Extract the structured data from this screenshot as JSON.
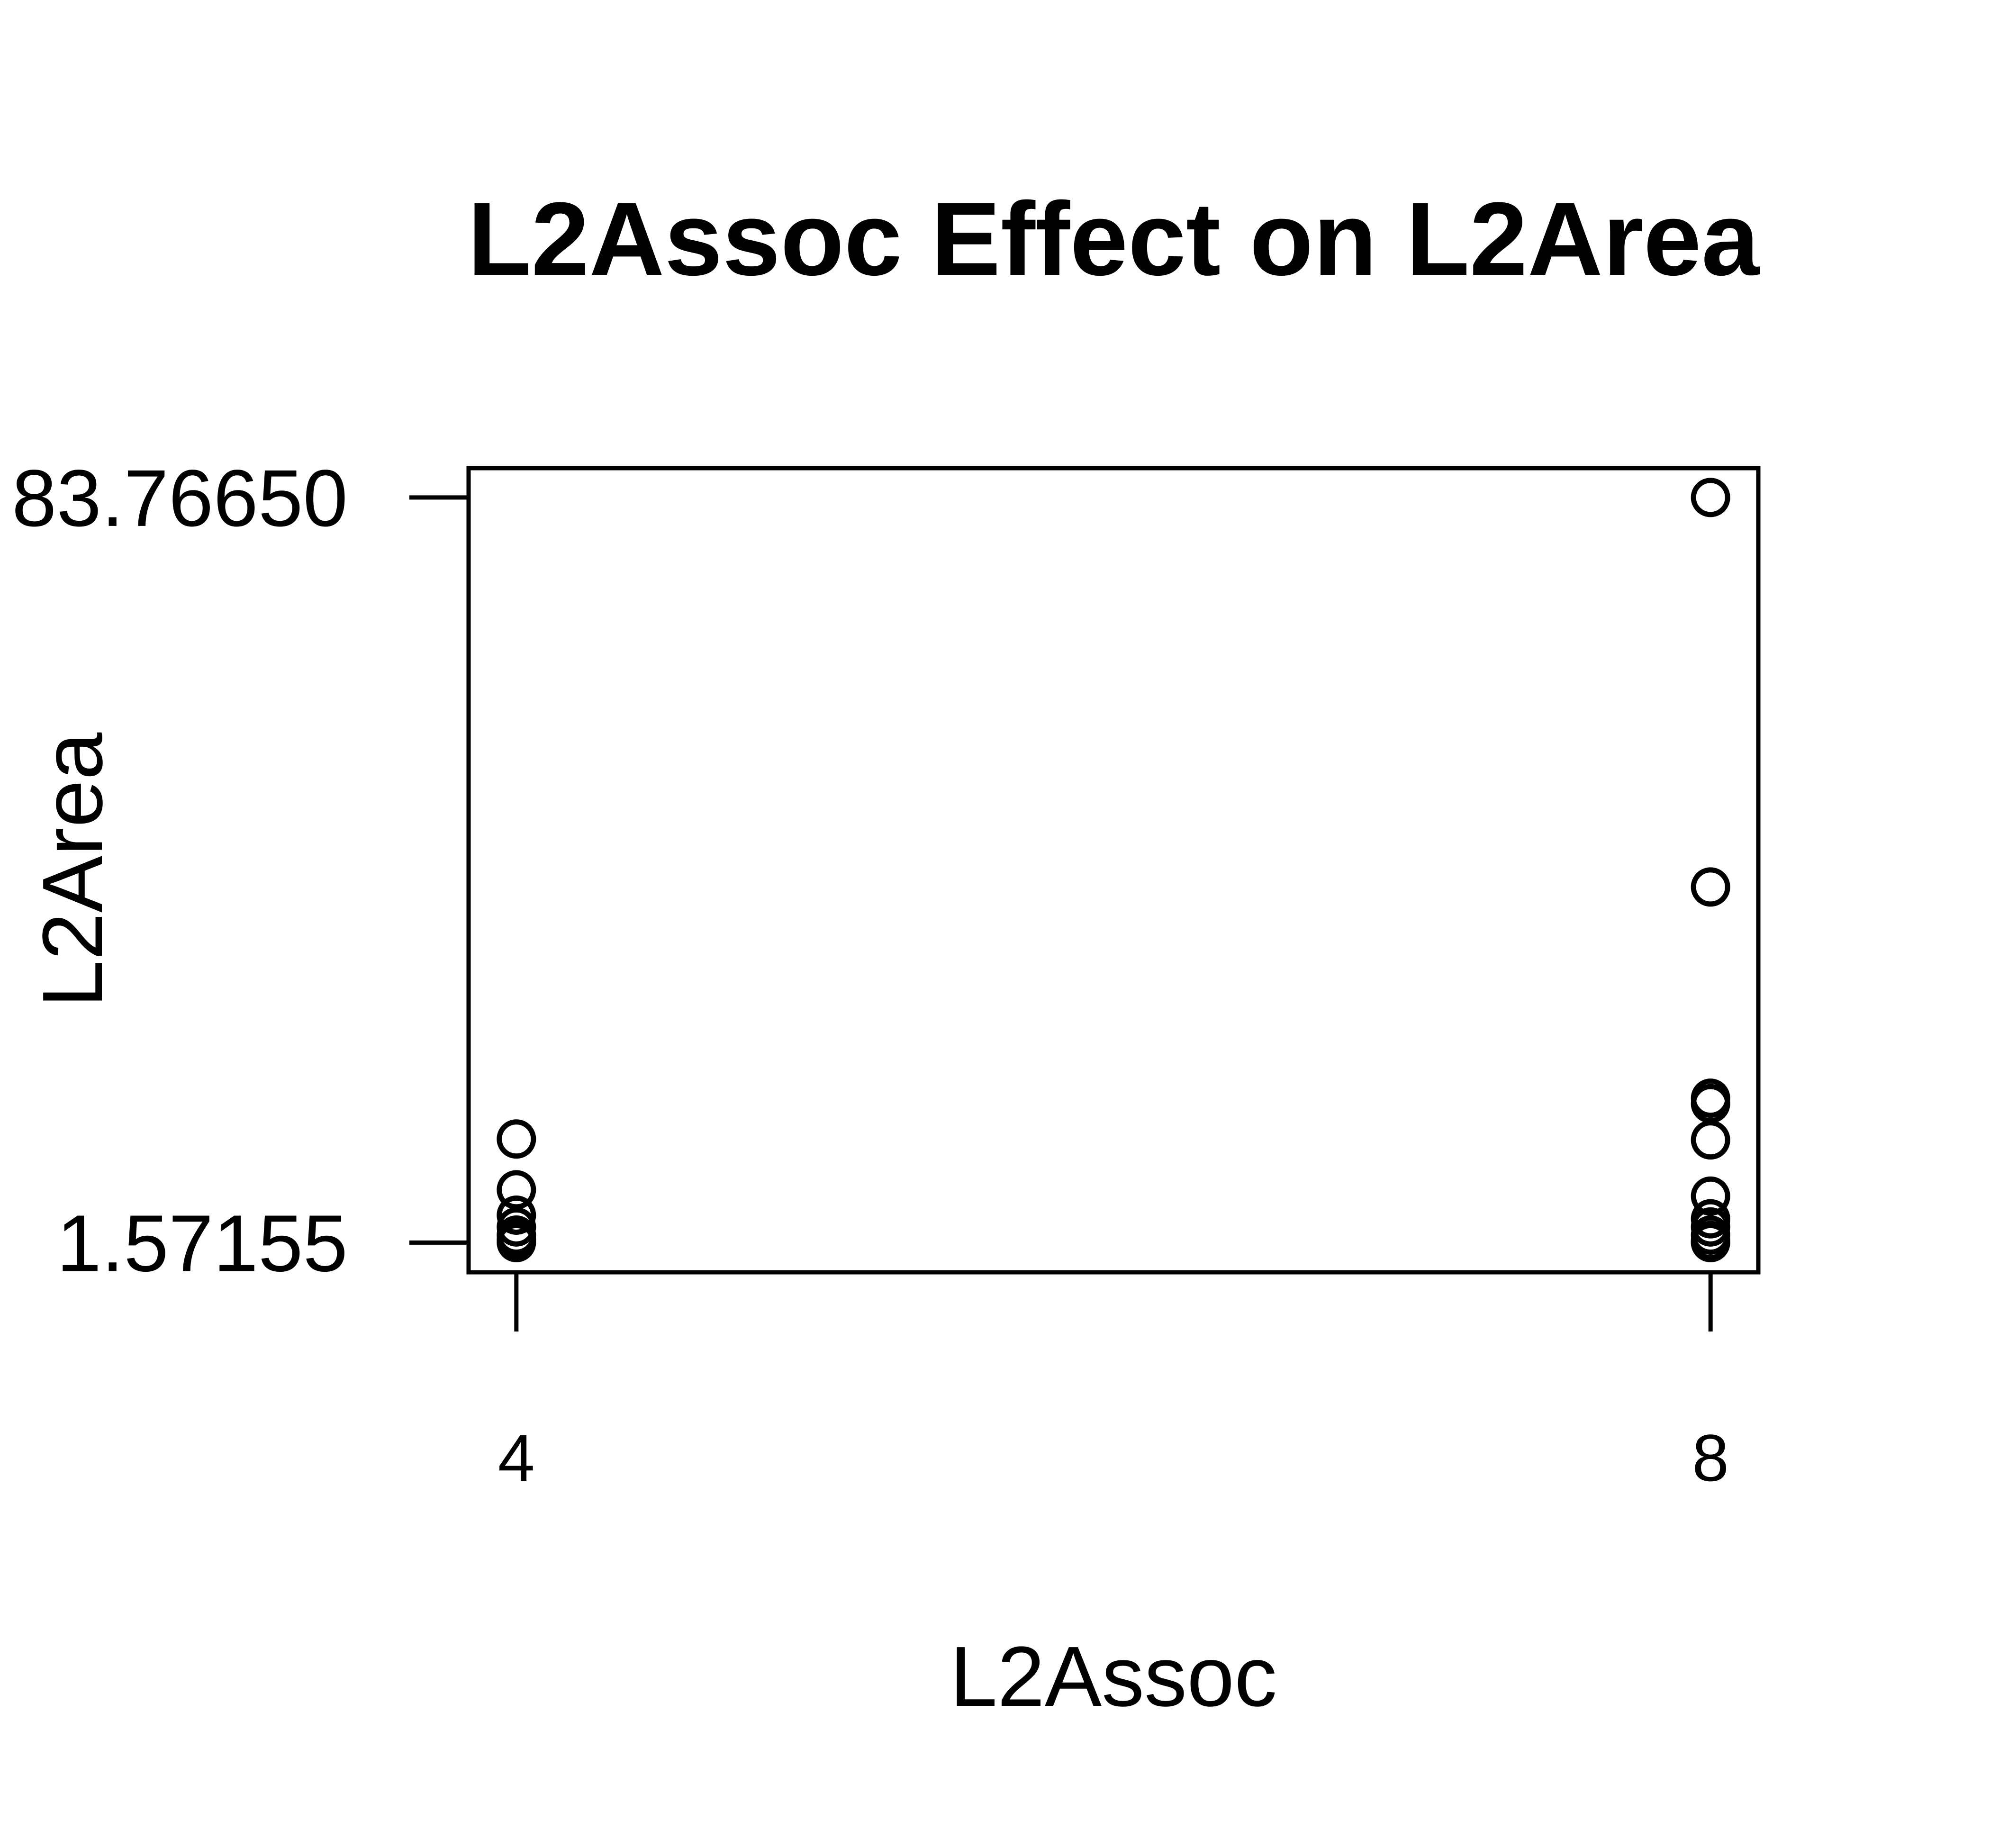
{
  "chart_data": {
    "type": "scatter",
    "title": "L2Assoc Effect on L2Area",
    "xlabel": "L2Assoc",
    "ylabel": "L2Area",
    "xlim": [
      3.84,
      8.16
    ],
    "ylim": [
      -1.7,
      87.0
    ],
    "x_ticks": [
      4,
      8
    ],
    "x_tick_labels": [
      "4",
      "8"
    ],
    "y_ticks": [
      1.57155,
      83.7665
    ],
    "y_tick_labels": [
      "1.57155",
      "83.76650"
    ],
    "grid": false,
    "legend": "none",
    "marker": "open-circle",
    "series": [
      {
        "x": [
          4,
          4,
          4,
          4,
          4,
          4,
          4,
          8,
          8,
          8,
          8,
          8,
          8,
          8,
          8,
          8,
          8,
          8,
          8
        ],
        "y": [
          13.0,
          7.4,
          4.6,
          3.3,
          2.4,
          1.9,
          1.57155,
          83.7665,
          40.8,
          17.5,
          16.9,
          12.9,
          6.7,
          4.2,
          3.3,
          2.4,
          1.8,
          1.6,
          1.57155
        ]
      }
    ]
  }
}
